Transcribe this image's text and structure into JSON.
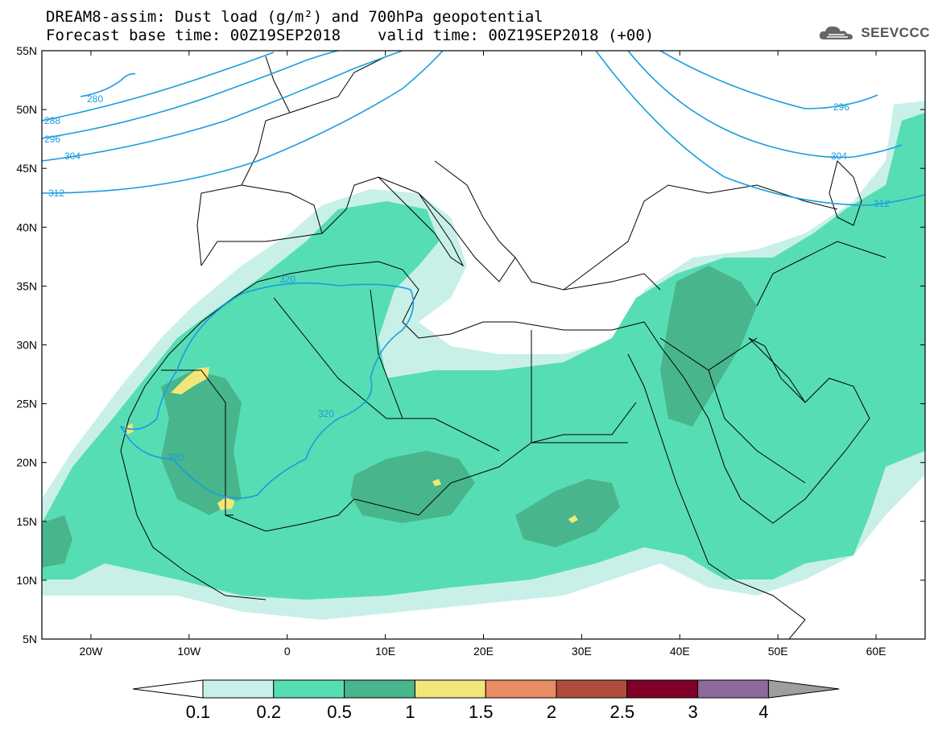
{
  "title": {
    "line1": "DREAM8-assim: Dust load (g/m²) and 700hPa geopotential",
    "line2_base": "Forecast base time: 00Z19SEP2018",
    "line2_valid": "valid time: 00Z19SEP2018 (+00)"
  },
  "logo": {
    "text": "SEEVCCC",
    "icon": "cloud-icon"
  },
  "map": {
    "lat_range": [
      5,
      55
    ],
    "lon_range": [
      -25,
      65
    ],
    "lat_labels": [
      "55N",
      "50N",
      "45N",
      "40N",
      "35N",
      "30N",
      "25N",
      "20N",
      "15N",
      "10N",
      "5N"
    ],
    "lon_labels": [
      "20W",
      "10W",
      "0",
      "10E",
      "20E",
      "30E",
      "40E",
      "50E",
      "60E"
    ]
  },
  "contours": {
    "color": "#1a9ce0",
    "labels": [
      "280",
      "288",
      "296",
      "304",
      "312",
      "320",
      "296",
      "304",
      "312",
      "320",
      "320"
    ]
  },
  "colorbar": {
    "colors": [
      "#c8f0e8",
      "#57ddb3",
      "#48b58c",
      "#f0e67a",
      "#e88c66",
      "#b04c3d",
      "#800028",
      "#8c6a9c",
      "#9e9e9e"
    ],
    "labels": [
      "0.1",
      "0.2",
      "0.5",
      "1",
      "1.5",
      "2",
      "2.5",
      "3",
      "4"
    ]
  },
  "legend_colors": {
    "border": "#000000",
    "contour": "#1a9ce0"
  }
}
